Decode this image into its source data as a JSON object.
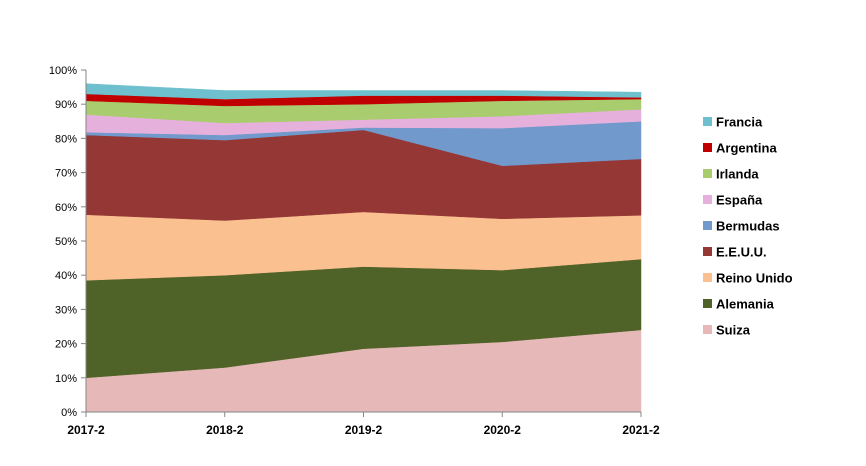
{
  "chart_data": {
    "type": "area",
    "stacked": true,
    "categories": [
      "2017-2",
      "2018-2",
      "2019-2",
      "2020-2",
      "2021-2"
    ],
    "y_ticks": [
      "0%",
      "10%",
      "20%",
      "30%",
      "40%",
      "50%",
      "60%",
      "70%",
      "80%",
      "90%",
      "100%"
    ],
    "ylim": [
      0,
      100
    ],
    "legend_position": "right",
    "series": [
      {
        "name": "Suiza",
        "color": "#E6B9B8",
        "values": [
          10.0,
          13.0,
          18.5,
          20.5,
          24.0
        ]
      },
      {
        "name": "Alemania",
        "color": "#4F6228",
        "values": [
          28.5,
          27.0,
          24.0,
          21.0,
          20.7
        ]
      },
      {
        "name": "Reino Unido",
        "color": "#FAC090",
        "values": [
          19.2,
          16.0,
          16.0,
          15.0,
          12.8
        ]
      },
      {
        "name": "E.E.U.U.",
        "color": "#953735",
        "values": [
          23.3,
          23.5,
          24.0,
          15.5,
          16.5
        ]
      },
      {
        "name": "Bermudas",
        "color": "#7199CC",
        "values": [
          0.8,
          1.5,
          0.7,
          11.0,
          11.0
        ]
      },
      {
        "name": "España",
        "color": "#E6B0DC",
        "values": [
          5.2,
          3.5,
          2.3,
          3.5,
          3.5
        ]
      },
      {
        "name": "Irlanda",
        "color": "#A9CC6E",
        "values": [
          4.0,
          5.0,
          4.5,
          4.5,
          3.0
        ]
      },
      {
        "name": "Argentina",
        "color": "#C00000",
        "values": [
          2.0,
          2.0,
          2.5,
          1.5,
          0.5
        ]
      },
      {
        "name": "Francia",
        "color": "#6EC0CE",
        "values": [
          3.0,
          2.5,
          1.5,
          1.5,
          1.5
        ]
      }
    ]
  }
}
